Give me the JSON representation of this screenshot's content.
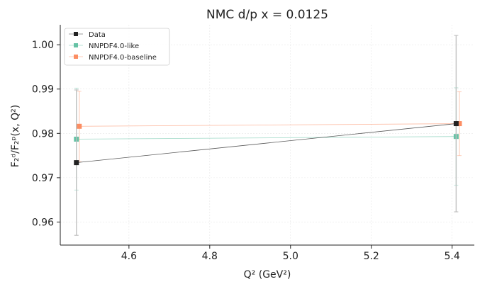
{
  "chart_data": {
    "type": "line",
    "title": "NMC d/p x = 0.0125",
    "xlabel": "Q² (GeV²)",
    "ylabel": "F₂ᵈ/F₂ᵖ(x, Q²)",
    "xlim": [
      4.43,
      5.455
    ],
    "ylim": [
      0.9548,
      1.0045
    ],
    "xticks": [
      4.6,
      4.8,
      5.0,
      5.2,
      5.4
    ],
    "xtick_labels": [
      "4.6",
      "4.8",
      "5.0",
      "5.2",
      "5.4"
    ],
    "yticks": [
      0.96,
      0.97,
      0.98,
      0.99,
      1.0
    ],
    "ytick_labels": [
      "0.96",
      "0.97",
      "0.98",
      "0.99",
      "1.00"
    ],
    "grid": true,
    "legend_position": "top-left",
    "series": [
      {
        "name": "Data",
        "color": "#222222",
        "marker": "square",
        "x": [
          4.47,
          5.41
        ],
        "y": [
          0.9734,
          0.9822
        ],
        "yerr": [
          0.0164,
          0.0199
        ]
      },
      {
        "name": "NNPDF4.0-like",
        "color": "#66c2a5",
        "marker": "square",
        "x": [
          4.47,
          5.41
        ],
        "y": [
          0.9787,
          0.9793
        ],
        "yerr": [
          0.0115,
          0.011
        ]
      },
      {
        "name": "NNPDF4.0-baseline",
        "color": "#fc8d62",
        "marker": "square",
        "x": [
          4.477,
          5.418
        ],
        "y": [
          0.9816,
          0.9822
        ],
        "yerr": [
          0.0079,
          0.0072
        ]
      }
    ]
  }
}
